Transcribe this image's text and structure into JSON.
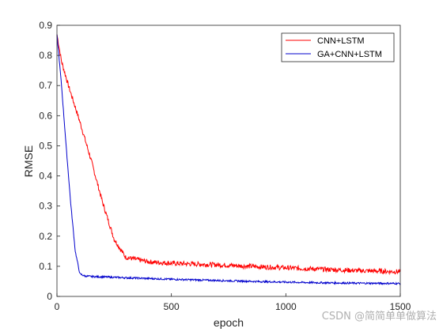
{
  "chart_data": {
    "type": "line",
    "title": "",
    "xlabel": "epoch",
    "ylabel": "RMSE",
    "xlim": [
      0,
      1500
    ],
    "ylim": [
      0,
      0.9
    ],
    "xticks": [
      0,
      500,
      1000,
      1500
    ],
    "yticks": [
      0,
      0.1,
      0.2,
      0.3,
      0.4,
      0.5,
      0.6,
      0.7,
      0.8,
      0.9
    ],
    "grid": false,
    "legend_position": "top-right",
    "series": [
      {
        "name": "CNN+LSTM",
        "color": "#ff0000",
        "x": [
          0,
          20,
          50,
          100,
          150,
          200,
          250,
          300,
          400,
          500,
          700,
          900,
          1100,
          1300,
          1500
        ],
        "y": [
          0.87,
          0.78,
          0.7,
          0.58,
          0.45,
          0.31,
          0.19,
          0.13,
          0.115,
          0.11,
          0.105,
          0.098,
          0.092,
          0.086,
          0.082
        ]
      },
      {
        "name": "GA+CNN+LSTM",
        "color": "#0000cc",
        "x": [
          0,
          20,
          40,
          60,
          80,
          100,
          120,
          150,
          200,
          300,
          500,
          700,
          900,
          1100,
          1300,
          1500
        ],
        "y": [
          0.87,
          0.7,
          0.5,
          0.31,
          0.15,
          0.075,
          0.068,
          0.066,
          0.065,
          0.062,
          0.057,
          0.053,
          0.049,
          0.046,
          0.044,
          0.043
        ]
      }
    ]
  },
  "watermark": "CSDN @简简单单做算法"
}
